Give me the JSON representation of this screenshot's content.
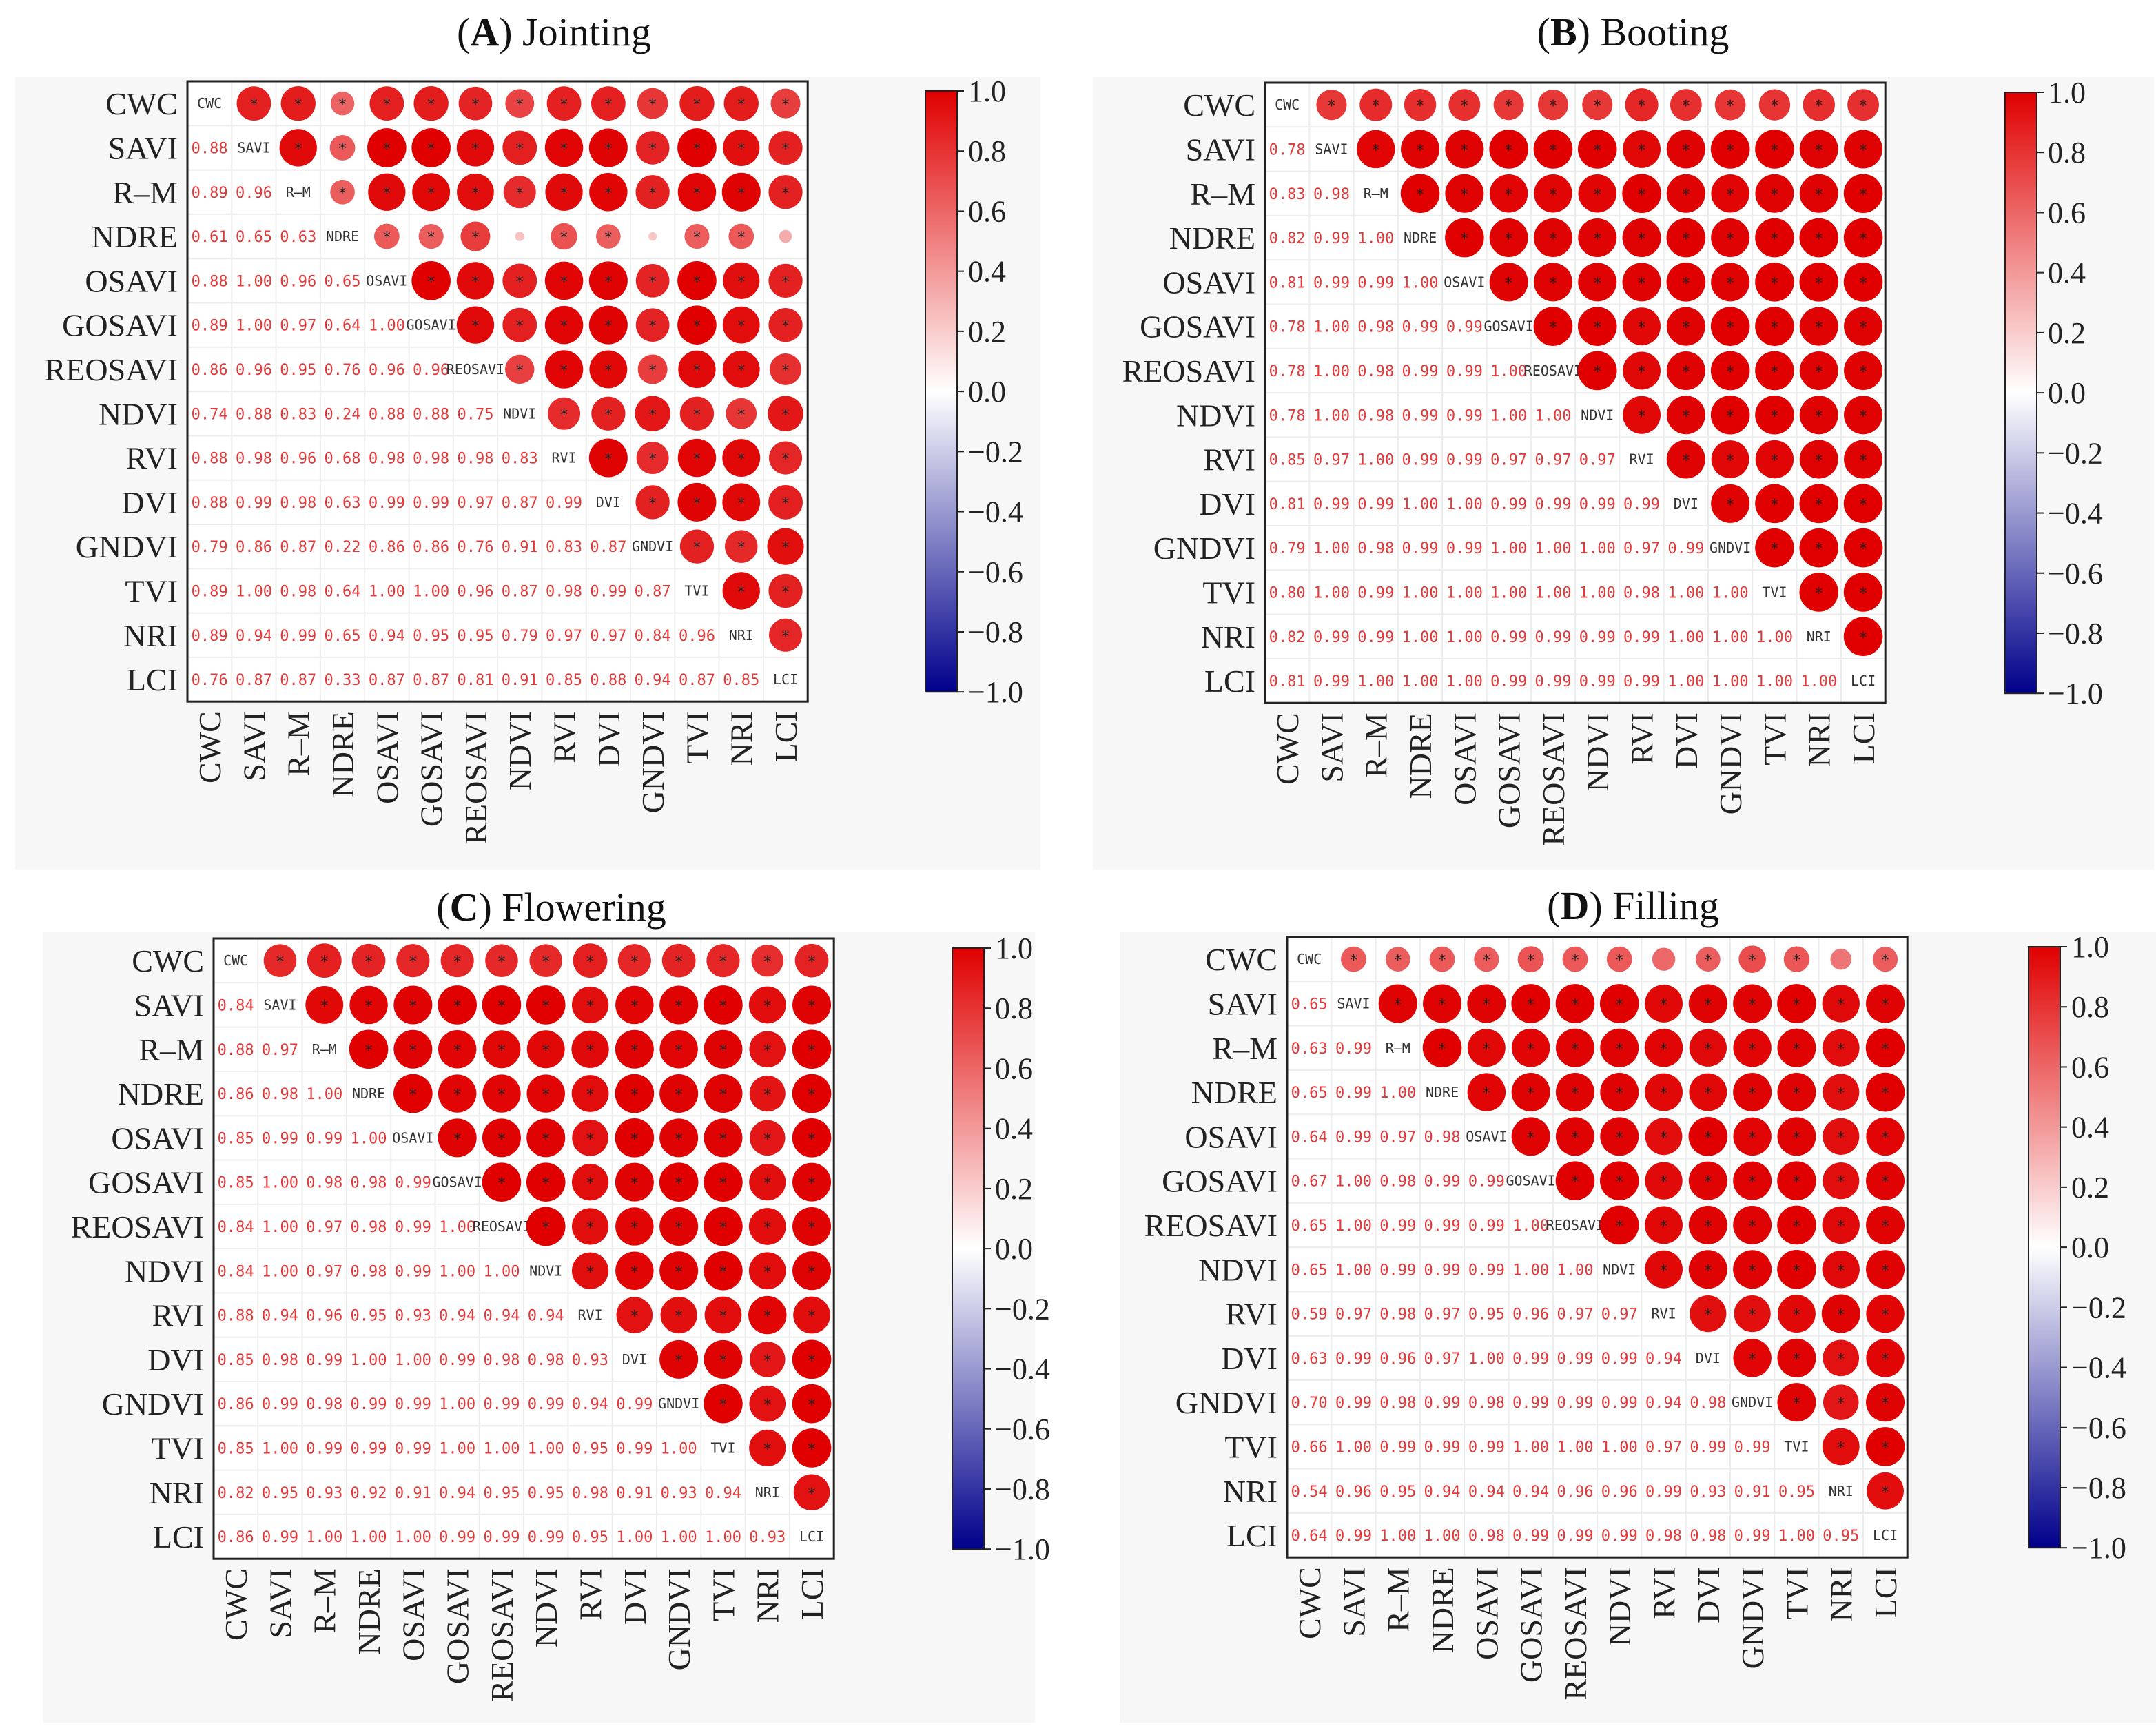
{
  "variables": [
    "CWC",
    "SAVI",
    "R–M",
    "NDRE",
    "OSAVI",
    "GOSAVI",
    "REOSAVI",
    "NDVI",
    "RVI",
    "DVI",
    "GNDVI",
    "TVI",
    "NRI",
    "LCI"
  ],
  "diagonal_labels": [
    "CWC",
    "SAVI",
    "R–M",
    "NDRE",
    "OSAVI",
    "GOSAVI",
    "REOSAVI",
    "NDVI",
    "RVI",
    "DVI",
    "GNDVI",
    "TVI",
    "NRI",
    "LCI"
  ],
  "colorbar": {
    "ticks": [
      "1.0",
      "0.8",
      "0.6",
      "0.4",
      "0.2",
      "0.0",
      "−0.2",
      "−0.4",
      "−0.6",
      "−0.8",
      "−1.0"
    ],
    "colors": {
      "high": "#e00000",
      "mid": "#ffffff",
      "low": "#00008b"
    }
  },
  "chart_data": [
    {
      "type": "heatmap",
      "panel": "A",
      "title": "Jointing",
      "lower": [
        [],
        [
          0.88
        ],
        [
          0.89,
          0.96
        ],
        [
          0.61,
          0.65,
          0.63
        ],
        [
          0.88,
          1.0,
          0.96,
          0.65
        ],
        [
          0.89,
          1.0,
          0.97,
          0.64,
          1.0
        ],
        [
          0.86,
          0.96,
          0.95,
          0.76,
          0.96,
          0.96
        ],
        [
          0.74,
          0.88,
          0.83,
          0.24,
          0.88,
          0.88,
          0.75
        ],
        [
          0.88,
          0.98,
          0.96,
          0.68,
          0.98,
          0.98,
          0.98,
          0.83
        ],
        [
          0.88,
          0.99,
          0.98,
          0.63,
          0.99,
          0.99,
          0.97,
          0.87,
          0.99
        ],
        [
          0.79,
          0.86,
          0.87,
          0.22,
          0.86,
          0.86,
          0.76,
          0.91,
          0.83,
          0.87
        ],
        [
          0.89,
          1.0,
          0.98,
          0.64,
          1.0,
          1.0,
          0.96,
          0.87,
          0.98,
          0.99,
          0.87
        ],
        [
          0.89,
          0.94,
          0.99,
          0.65,
          0.94,
          0.95,
          0.95,
          0.79,
          0.97,
          0.97,
          0.84,
          0.96
        ],
        [
          0.76,
          0.87,
          0.87,
          0.33,
          0.87,
          0.87,
          0.81,
          0.91,
          0.85,
          0.88,
          0.94,
          0.87,
          0.85
        ]
      ]
    },
    {
      "type": "heatmap",
      "panel": "B",
      "title": "Booting",
      "lower": [
        [],
        [
          0.78
        ],
        [
          0.83,
          0.98
        ],
        [
          0.82,
          0.99,
          1.0
        ],
        [
          0.81,
          0.99,
          0.99,
          1.0
        ],
        [
          0.78,
          1.0,
          0.98,
          0.99,
          0.99
        ],
        [
          0.78,
          1.0,
          0.98,
          0.99,
          0.99,
          1.0
        ],
        [
          0.78,
          1.0,
          0.98,
          0.99,
          0.99,
          1.0,
          1.0
        ],
        [
          0.85,
          0.97,
          1.0,
          0.99,
          0.99,
          0.97,
          0.97,
          0.97
        ],
        [
          0.81,
          0.99,
          0.99,
          1.0,
          1.0,
          0.99,
          0.99,
          0.99,
          0.99
        ],
        [
          0.79,
          1.0,
          0.98,
          0.99,
          0.99,
          1.0,
          1.0,
          1.0,
          0.97,
          0.99
        ],
        [
          0.8,
          1.0,
          0.99,
          1.0,
          1.0,
          1.0,
          1.0,
          1.0,
          0.98,
          1.0,
          1.0
        ],
        [
          0.82,
          0.99,
          0.99,
          1.0,
          1.0,
          0.99,
          0.99,
          0.99,
          0.99,
          1.0,
          1.0,
          1.0
        ],
        [
          0.81,
          0.99,
          1.0,
          1.0,
          1.0,
          0.99,
          0.99,
          0.99,
          0.99,
          1.0,
          1.0,
          1.0,
          1.0
        ]
      ]
    },
    {
      "type": "heatmap",
      "panel": "C",
      "title": "Flowering",
      "lower": [
        [],
        [
          0.84
        ],
        [
          0.88,
          0.97
        ],
        [
          0.86,
          0.98,
          1.0
        ],
        [
          0.85,
          0.99,
          0.99,
          1.0
        ],
        [
          0.85,
          1.0,
          0.98,
          0.98,
          0.99
        ],
        [
          0.84,
          1.0,
          0.97,
          0.98,
          0.99,
          1.0
        ],
        [
          0.84,
          1.0,
          0.97,
          0.98,
          0.99,
          1.0,
          1.0
        ],
        [
          0.88,
          0.94,
          0.96,
          0.95,
          0.93,
          0.94,
          0.94,
          0.94
        ],
        [
          0.85,
          0.98,
          0.99,
          1.0,
          1.0,
          0.99,
          0.98,
          0.98,
          0.93
        ],
        [
          0.86,
          0.99,
          0.98,
          0.99,
          0.99,
          1.0,
          0.99,
          0.99,
          0.94,
          0.99
        ],
        [
          0.85,
          1.0,
          0.99,
          0.99,
          0.99,
          1.0,
          1.0,
          1.0,
          0.95,
          0.99,
          1.0
        ],
        [
          0.82,
          0.95,
          0.93,
          0.92,
          0.91,
          0.94,
          0.95,
          0.95,
          0.98,
          0.91,
          0.93,
          0.94
        ],
        [
          0.86,
          0.99,
          1.0,
          1.0,
          1.0,
          0.99,
          0.99,
          0.99,
          0.95,
          1.0,
          1.0,
          1.0,
          0.93
        ]
      ]
    },
    {
      "type": "heatmap",
      "panel": "D",
      "title": "Filling",
      "lower": [
        [],
        [
          0.65
        ],
        [
          0.63,
          0.99
        ],
        [
          0.65,
          0.99,
          1.0
        ],
        [
          0.64,
          0.99,
          0.97,
          0.98
        ],
        [
          0.67,
          1.0,
          0.98,
          0.99,
          0.99
        ],
        [
          0.65,
          1.0,
          0.99,
          0.99,
          0.99,
          1.0
        ],
        [
          0.65,
          1.0,
          0.99,
          0.99,
          0.99,
          1.0,
          1.0
        ],
        [
          0.59,
          0.97,
          0.98,
          0.97,
          0.95,
          0.96,
          0.97,
          0.97
        ],
        [
          0.63,
          0.99,
          0.96,
          0.97,
          1.0,
          0.99,
          0.99,
          0.99,
          0.94
        ],
        [
          0.7,
          0.99,
          0.98,
          0.99,
          0.98,
          0.99,
          0.99,
          0.99,
          0.94,
          0.98
        ],
        [
          0.66,
          1.0,
          0.99,
          0.99,
          0.99,
          1.0,
          1.0,
          1.0,
          0.97,
          0.99,
          0.99
        ],
        [
          0.54,
          0.96,
          0.95,
          0.94,
          0.94,
          0.94,
          0.96,
          0.96,
          0.99,
          0.93,
          0.91,
          0.95
        ],
        [
          0.64,
          0.99,
          1.0,
          1.0,
          0.98,
          0.99,
          0.99,
          0.99,
          0.98,
          0.98,
          0.99,
          1.0,
          0.95
        ]
      ]
    }
  ]
}
